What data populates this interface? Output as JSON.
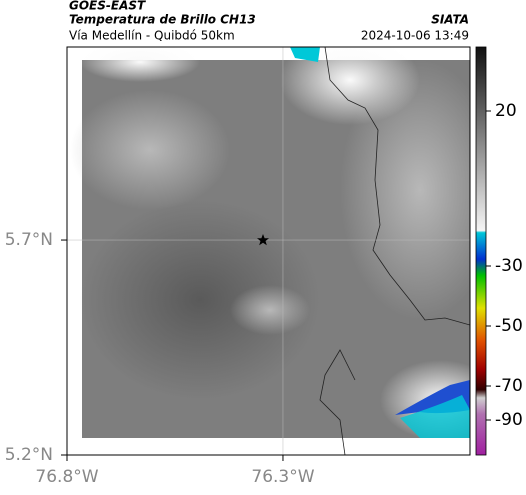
{
  "header": {
    "source": "GOES-EAST",
    "title": "Temperatura de Brillo CH13",
    "brand": "SIATA",
    "subtitle": "Vía Medellín - Quibdó 50km",
    "datetime": "2024-10-06 13:49"
  },
  "map": {
    "xlim": [
      -76.8,
      -75.867
    ],
    "ylim": [
      5.2,
      6.149
    ],
    "xticks": [
      {
        "value": -76.8,
        "label": "76.8°W"
      },
      {
        "value": -76.3,
        "label": "76.3°W"
      }
    ],
    "yticks": [
      {
        "value": 5.2,
        "label": "5.2°N"
      },
      {
        "value": 5.7,
        "label": "5.7°N"
      }
    ]
  },
  "colorbar": {
    "ticks": [
      20,
      -30,
      -50,
      -70,
      -90
    ]
  }
}
